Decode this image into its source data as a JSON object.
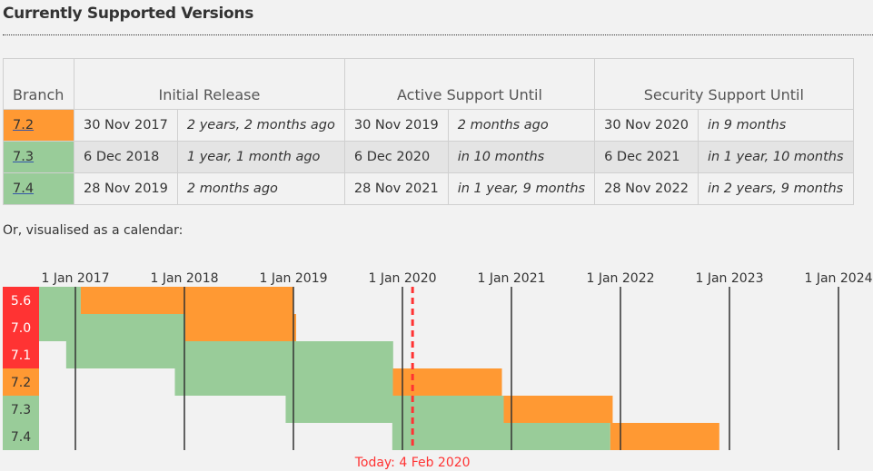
{
  "heading": "Currently Supported Versions",
  "table": {
    "headers": [
      "Branch",
      "Initial Release",
      "Active Support Until",
      "Security Support Until"
    ],
    "rows": [
      {
        "branch": "7.2",
        "status": "security",
        "initial_date": "30 Nov 2017",
        "initial_rel": "2 years, 2 months ago",
        "active_date": "30 Nov 2019",
        "active_rel": "2 months ago",
        "security_date": "30 Nov 2020",
        "security_rel": "in 9 months"
      },
      {
        "branch": "7.3",
        "status": "active",
        "initial_date": "6 Dec 2018",
        "initial_rel": "1 year, 1 month ago",
        "active_date": "6 Dec 2020",
        "active_rel": "in 10 months",
        "security_date": "6 Dec 2021",
        "security_rel": "in 1 year, 10 months"
      },
      {
        "branch": "7.4",
        "status": "active",
        "initial_date": "28 Nov 2019",
        "initial_rel": "2 months ago",
        "active_date": "28 Nov 2021",
        "active_rel": "in 1 year, 9 months",
        "security_date": "28 Nov 2022",
        "security_rel": "in 2 years, 9 months"
      }
    ]
  },
  "calendar": {
    "intro": "Or, visualised as a calendar:",
    "years": [
      "1 Jan 2017",
      "1 Jan 2018",
      "1 Jan 2019",
      "1 Jan 2020",
      "1 Jan 2021",
      "1 Jan 2022",
      "1 Jan 2023",
      "1 Jan 2024"
    ],
    "today_label": "Today: 4 Feb 2020",
    "today_date": "2020-02-04",
    "branches": [
      {
        "name": "5.6",
        "label_status": "eol",
        "active_start": "2014-08-28",
        "active_end": "2017-01-19",
        "security_end": "2018-12-31"
      },
      {
        "name": "7.0",
        "label_status": "eol",
        "active_start": "2015-12-03",
        "active_end": "2018-01-04",
        "security_end": "2019-01-10"
      },
      {
        "name": "7.1",
        "label_status": "eol",
        "active_start": "2016-12-01",
        "active_end": "2019-12-01",
        "security_end": "2019-12-01"
      },
      {
        "name": "7.2",
        "label_status": "security",
        "active_start": "2017-11-30",
        "active_end": "2019-11-30",
        "security_end": "2020-11-30"
      },
      {
        "name": "7.3",
        "label_status": "active",
        "active_start": "2018-12-06",
        "active_end": "2020-12-06",
        "security_end": "2021-12-06"
      },
      {
        "name": "7.4",
        "label_status": "active",
        "active_start": "2019-11-28",
        "active_end": "2021-11-28",
        "security_end": "2022-11-28"
      }
    ],
    "colors": {
      "active": "#99cc99",
      "security": "#ff9933",
      "eol": "#ff3333",
      "today": "#ff3333",
      "gridline": "#333333"
    }
  }
}
